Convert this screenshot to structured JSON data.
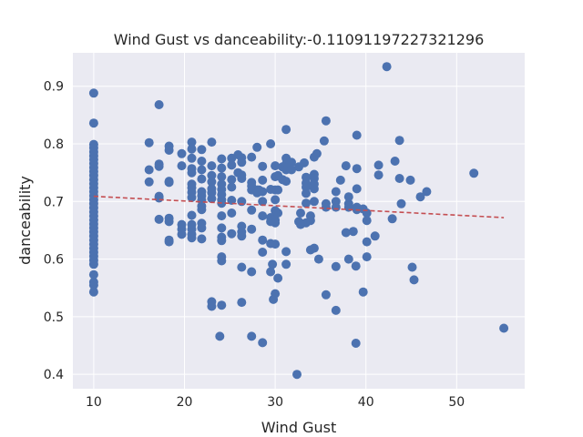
{
  "chart_data": {
    "type": "scatter",
    "title": "Wind Gust vs danceability:-0.11091197227321296",
    "xlabel": "Wind Gust",
    "ylabel": "danceability",
    "xlim": [
      7.7,
      57.5
    ],
    "ylim": [
      0.375,
      0.958
    ],
    "xticks": [
      10,
      20,
      30,
      40,
      50
    ],
    "yticks": [
      0.4,
      0.5,
      0.6,
      0.7,
      0.8,
      0.9
    ],
    "grid": true,
    "colors": {
      "background": "#eaeaf2",
      "grid": "#ffffff",
      "points": "#4c72b0",
      "trend": "#c44e52"
    },
    "trendline": {
      "x": [
        10.0,
        55.2
      ],
      "y": [
        0.709,
        0.672
      ]
    },
    "points": [
      [
        10.0,
        0.888
      ],
      [
        10.0,
        0.836
      ],
      [
        10.0,
        0.799
      ],
      [
        10.0,
        0.793
      ],
      [
        10.0,
        0.786
      ],
      [
        10.0,
        0.779
      ],
      [
        10.0,
        0.773
      ],
      [
        10.0,
        0.766
      ],
      [
        10.0,
        0.759
      ],
      [
        10.0,
        0.752
      ],
      [
        10.0,
        0.745
      ],
      [
        10.0,
        0.738
      ],
      [
        10.0,
        0.731
      ],
      [
        10.0,
        0.724
      ],
      [
        10.0,
        0.717
      ],
      [
        10.0,
        0.71
      ],
      [
        10.0,
        0.703
      ],
      [
        10.0,
        0.696
      ],
      [
        10.0,
        0.689
      ],
      [
        10.0,
        0.682
      ],
      [
        10.0,
        0.675
      ],
      [
        10.0,
        0.668
      ],
      [
        10.0,
        0.661
      ],
      [
        10.0,
        0.654
      ],
      [
        10.0,
        0.647
      ],
      [
        10.0,
        0.64
      ],
      [
        10.0,
        0.633
      ],
      [
        10.0,
        0.626
      ],
      [
        10.0,
        0.619
      ],
      [
        10.0,
        0.612
      ],
      [
        10.0,
        0.605
      ],
      [
        10.0,
        0.598
      ],
      [
        10.0,
        0.591
      ],
      [
        10.0,
        0.573
      ],
      [
        10.0,
        0.56
      ],
      [
        10.0,
        0.555
      ],
      [
        10.0,
        0.543
      ],
      [
        16.1,
        0.802
      ],
      [
        16.1,
        0.755
      ],
      [
        16.1,
        0.734
      ],
      [
        17.2,
        0.868
      ],
      [
        17.2,
        0.765
      ],
      [
        17.2,
        0.761
      ],
      [
        17.2,
        0.709
      ],
      [
        17.2,
        0.706
      ],
      [
        17.2,
        0.669
      ],
      [
        18.3,
        0.796
      ],
      [
        18.3,
        0.789
      ],
      [
        18.3,
        0.735
      ],
      [
        18.3,
        0.733
      ],
      [
        18.3,
        0.671
      ],
      [
        18.3,
        0.665
      ],
      [
        18.3,
        0.633
      ],
      [
        18.3,
        0.63
      ],
      [
        19.7,
        0.783
      ],
      [
        19.7,
        0.762
      ],
      [
        19.7,
        0.66
      ],
      [
        19.7,
        0.652
      ],
      [
        19.7,
        0.643
      ],
      [
        20.8,
        0.803
      ],
      [
        20.8,
        0.791
      ],
      [
        20.8,
        0.775
      ],
      [
        20.8,
        0.757
      ],
      [
        20.8,
        0.75
      ],
      [
        20.8,
        0.73
      ],
      [
        20.8,
        0.724
      ],
      [
        20.8,
        0.716
      ],
      [
        20.8,
        0.707
      ],
      [
        20.8,
        0.676
      ],
      [
        20.8,
        0.66
      ],
      [
        20.8,
        0.652
      ],
      [
        20.8,
        0.643
      ],
      [
        20.8,
        0.637
      ],
      [
        21.9,
        0.79
      ],
      [
        21.9,
        0.77
      ],
      [
        21.9,
        0.755
      ],
      [
        21.9,
        0.739
      ],
      [
        21.9,
        0.717
      ],
      [
        21.9,
        0.71
      ],
      [
        21.9,
        0.702
      ],
      [
        21.9,
        0.692
      ],
      [
        21.9,
        0.686
      ],
      [
        21.9,
        0.662
      ],
      [
        21.9,
        0.654
      ],
      [
        21.9,
        0.635
      ],
      [
        23.0,
        0.803
      ],
      [
        23.0,
        0.762
      ],
      [
        23.0,
        0.745
      ],
      [
        23.0,
        0.734
      ],
      [
        23.0,
        0.722
      ],
      [
        23.0,
        0.715
      ],
      [
        23.0,
        0.705
      ],
      [
        23.0,
        0.526
      ],
      [
        23.0,
        0.518
      ],
      [
        24.1,
        0.774
      ],
      [
        24.1,
        0.758
      ],
      [
        24.1,
        0.743
      ],
      [
        24.1,
        0.73
      ],
      [
        24.1,
        0.721
      ],
      [
        24.1,
        0.712
      ],
      [
        24.1,
        0.703
      ],
      [
        24.1,
        0.697
      ],
      [
        24.1,
        0.675
      ],
      [
        24.1,
        0.654
      ],
      [
        24.1,
        0.638
      ],
      [
        24.1,
        0.632
      ],
      [
        24.1,
        0.604
      ],
      [
        24.1,
        0.597
      ],
      [
        24.1,
        0.52
      ],
      [
        23.9,
        0.466
      ],
      [
        25.2,
        0.775
      ],
      [
        25.2,
        0.763
      ],
      [
        25.2,
        0.738
      ],
      [
        25.2,
        0.725
      ],
      [
        25.2,
        0.702
      ],
      [
        25.2,
        0.68
      ],
      [
        25.2,
        0.644
      ],
      [
        25.9,
        0.781
      ],
      [
        25.9,
        0.75
      ],
      [
        26.3,
        0.776
      ],
      [
        26.3,
        0.768
      ],
      [
        26.3,
        0.746
      ],
      [
        26.3,
        0.74
      ],
      [
        26.3,
        0.7
      ],
      [
        26.3,
        0.657
      ],
      [
        26.3,
        0.647
      ],
      [
        26.3,
        0.64
      ],
      [
        26.3,
        0.586
      ],
      [
        26.3,
        0.525
      ],
      [
        27.4,
        0.777
      ],
      [
        27.4,
        0.733
      ],
      [
        27.4,
        0.727
      ],
      [
        27.4,
        0.72
      ],
      [
        27.4,
        0.685
      ],
      [
        27.4,
        0.652
      ],
      [
        27.4,
        0.578
      ],
      [
        27.4,
        0.466
      ],
      [
        28.0,
        0.794
      ],
      [
        28.0,
        0.72
      ],
      [
        28.0,
        0.715
      ],
      [
        28.6,
        0.761
      ],
      [
        28.6,
        0.737
      ],
      [
        28.6,
        0.717
      ],
      [
        28.6,
        0.7
      ],
      [
        28.6,
        0.675
      ],
      [
        28.6,
        0.633
      ],
      [
        28.6,
        0.612
      ],
      [
        28.6,
        0.455
      ],
      [
        28.2,
        0.72
      ],
      [
        29.5,
        0.8
      ],
      [
        29.5,
        0.721
      ],
      [
        29.5,
        0.672
      ],
      [
        29.5,
        0.665
      ],
      [
        29.5,
        0.627
      ],
      [
        29.5,
        0.578
      ],
      [
        29.7,
        0.591
      ],
      [
        29.8,
        0.53
      ],
      [
        30.0,
        0.762
      ],
      [
        30.0,
        0.743
      ],
      [
        30.0,
        0.72
      ],
      [
        30.0,
        0.703
      ],
      [
        30.0,
        0.684
      ],
      [
        30.0,
        0.668
      ],
      [
        30.0,
        0.663
      ],
      [
        30.0,
        0.626
      ],
      [
        30.0,
        0.54
      ],
      [
        30.3,
        0.745
      ],
      [
        30.3,
        0.72
      ],
      [
        30.3,
        0.68
      ],
      [
        30.3,
        0.567
      ],
      [
        30.8,
        0.76
      ],
      [
        30.8,
        0.738
      ],
      [
        31.2,
        0.825
      ],
      [
        31.2,
        0.775
      ],
      [
        31.2,
        0.765
      ],
      [
        31.2,
        0.755
      ],
      [
        31.2,
        0.735
      ],
      [
        31.2,
        0.613
      ],
      [
        31.2,
        0.591
      ],
      [
        31.5,
        0.76
      ],
      [
        31.8,
        0.768
      ],
      [
        31.8,
        0.755
      ],
      [
        32.4,
        0.4
      ],
      [
        32.6,
        0.76
      ],
      [
        32.6,
        0.665
      ],
      [
        32.8,
        0.68
      ],
      [
        32.8,
        0.66
      ],
      [
        33.2,
        0.767
      ],
      [
        33.4,
        0.742
      ],
      [
        33.4,
        0.732
      ],
      [
        33.4,
        0.725
      ],
      [
        33.4,
        0.714
      ],
      [
        33.4,
        0.697
      ],
      [
        33.4,
        0.663
      ],
      [
        33.9,
        0.675
      ],
      [
        33.9,
        0.667
      ],
      [
        33.9,
        0.616
      ],
      [
        34.3,
        0.777
      ],
      [
        34.3,
        0.747
      ],
      [
        34.3,
        0.74
      ],
      [
        34.3,
        0.73
      ],
      [
        34.3,
        0.722
      ],
      [
        34.3,
        0.7
      ],
      [
        34.3,
        0.619
      ],
      [
        34.6,
        0.783
      ],
      [
        34.8,
        0.6
      ],
      [
        35.4,
        0.805
      ],
      [
        35.6,
        0.84
      ],
      [
        35.6,
        0.696
      ],
      [
        35.6,
        0.69
      ],
      [
        35.6,
        0.538
      ],
      [
        36.7,
        0.717
      ],
      [
        36.7,
        0.7
      ],
      [
        36.7,
        0.69
      ],
      [
        36.7,
        0.587
      ],
      [
        36.7,
        0.511
      ],
      [
        37.2,
        0.737
      ],
      [
        37.8,
        0.762
      ],
      [
        37.8,
        0.646
      ],
      [
        38.1,
        0.708
      ],
      [
        38.1,
        0.696
      ],
      [
        38.1,
        0.69
      ],
      [
        38.1,
        0.6
      ],
      [
        38.6,
        0.648
      ],
      [
        38.9,
        0.454
      ],
      [
        38.9,
        0.588
      ],
      [
        39.0,
        0.815
      ],
      [
        39.0,
        0.757
      ],
      [
        39.0,
        0.722
      ],
      [
        39.0,
        0.69
      ],
      [
        39.0,
        0.686
      ],
      [
        39.7,
        0.687
      ],
      [
        39.7,
        0.543
      ],
      [
        40.1,
        0.68
      ],
      [
        40.1,
        0.667
      ],
      [
        40.1,
        0.63
      ],
      [
        40.1,
        0.604
      ],
      [
        41.0,
        0.64
      ],
      [
        41.4,
        0.763
      ],
      [
        41.4,
        0.746
      ],
      [
        42.3,
        0.934
      ],
      [
        42.9,
        0.67
      ],
      [
        43.2,
        0.77
      ],
      [
        43.7,
        0.806
      ],
      [
        43.7,
        0.74
      ],
      [
        43.9,
        0.696
      ],
      [
        44.9,
        0.737
      ],
      [
        45.1,
        0.586
      ],
      [
        45.3,
        0.564
      ],
      [
        46.0,
        0.708
      ],
      [
        46.7,
        0.717
      ],
      [
        51.9,
        0.749
      ],
      [
        55.2,
        0.48
      ]
    ]
  }
}
